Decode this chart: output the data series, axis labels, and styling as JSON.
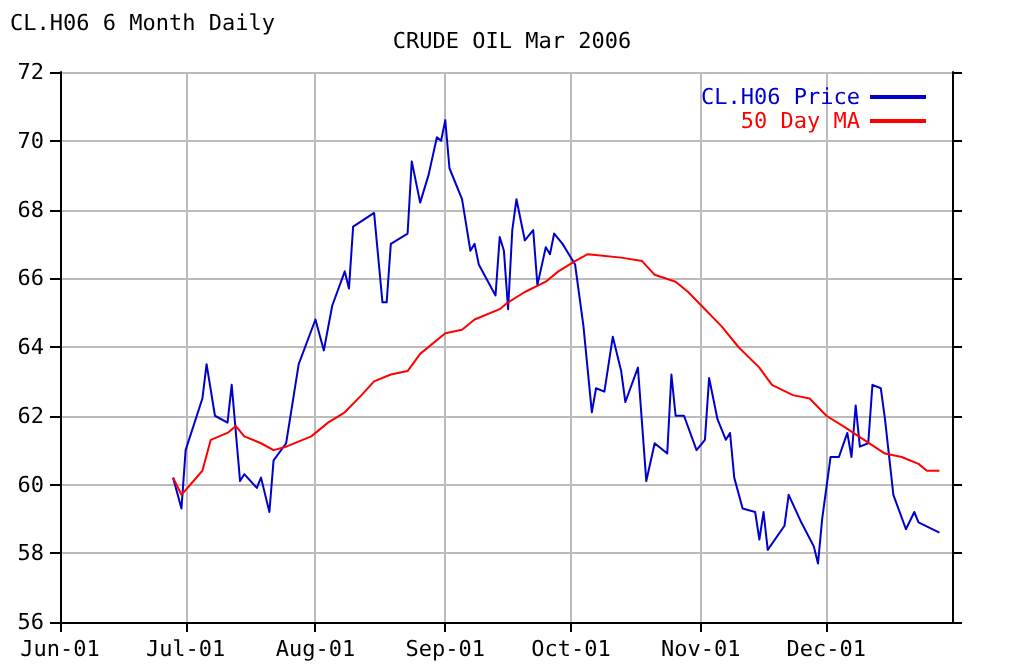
{
  "chart_data": {
    "type": "line",
    "title": "CRUDE OIL Mar 2006",
    "subtitle": "CL.H06 6 Month Daily",
    "xlim": [
      "--06-01",
      "--12-31"
    ],
    "xticks": [
      {
        "value": "--06-01",
        "label": "Jun-01"
      },
      {
        "value": "--07-01",
        "label": "Jul-01"
      },
      {
        "value": "--08-01",
        "label": "Aug-01"
      },
      {
        "value": "--09-01",
        "label": "Sep-01"
      },
      {
        "value": "--10-01",
        "label": "Oct-01"
      },
      {
        "value": "--11-01",
        "label": "Nov-01"
      },
      {
        "value": "--12-01",
        "label": "Dec-01"
      }
    ],
    "ylim": [
      56,
      72
    ],
    "yticks": [
      56,
      58,
      60,
      62,
      64,
      66,
      68,
      70,
      72
    ],
    "grid": true,
    "legend": "top right",
    "marker": "none",
    "line_style": "solid",
    "series": [
      {
        "name": "CL.H06 Price",
        "color": "#0000cc",
        "x": [
          "--06-28",
          "--06-30",
          "--07-01",
          "--07-05",
          "--07-06",
          "--07-08",
          "--07-11",
          "--07-12",
          "--07-14",
          "--07-15",
          "--07-18",
          "--07-19",
          "--07-21",
          "--07-22",
          "--07-25",
          "--07-28",
          "--08-01",
          "--08-03",
          "--08-05",
          "--08-08",
          "--08-09",
          "--08-10",
          "--08-15",
          "--08-17",
          "--08-18",
          "--08-19",
          "--08-23",
          "--08-24",
          "--08-26",
          "--08-28",
          "--08-30",
          "--08-31",
          "--09-01",
          "--09-02",
          "--09-05",
          "--09-07",
          "--09-08",
          "--09-09",
          "--09-13",
          "--09-14",
          "--09-15",
          "--09-16",
          "--09-17",
          "--09-18",
          "--09-20",
          "--09-22",
          "--09-23",
          "--09-25",
          "--09-26",
          "--09-27",
          "--09-29",
          "--10-02",
          "--10-04",
          "--10-06",
          "--10-07",
          "--10-09",
          "--10-11",
          "--10-13",
          "--10-14",
          "--10-17",
          "--10-19",
          "--10-21",
          "--10-24",
          "--10-25",
          "--10-26",
          "--10-28",
          "--10-31",
          "--11-02",
          "--11-03",
          "--11-05",
          "--11-07",
          "--11-08",
          "--11-09",
          "--11-11",
          "--11-14",
          "--11-15",
          "--11-16",
          "--11-17",
          "--11-21",
          "--11-22",
          "--11-25",
          "--11-28",
          "--11-29",
          "--11-30",
          "--12-02",
          "--12-04",
          "--12-06",
          "--12-07",
          "--12-08",
          "--12-09",
          "--12-11",
          "--12-12",
          "--12-14",
          "--12-15",
          "--12-17",
          "--12-20",
          "--12-22",
          "--12-23",
          "--12-28"
        ],
        "values": [
          60.2,
          59.3,
          61.0,
          62.5,
          63.5,
          62.0,
          61.8,
          62.9,
          60.1,
          60.3,
          59.9,
          60.2,
          59.2,
          60.7,
          61.2,
          63.5,
          64.8,
          63.9,
          65.2,
          66.2,
          65.7,
          67.5,
          67.9,
          65.3,
          65.3,
          67.0,
          67.3,
          69.4,
          68.2,
          69.0,
          70.1,
          70.0,
          70.6,
          69.2,
          68.3,
          66.8,
          67.0,
          66.4,
          65.5,
          67.2,
          66.8,
          65.1,
          67.4,
          68.3,
          67.1,
          67.4,
          65.8,
          66.9,
          66.7,
          67.3,
          67.0,
          66.4,
          64.6,
          62.1,
          62.8,
          62.7,
          64.3,
          63.3,
          62.4,
          63.4,
          60.1,
          61.2,
          60.9,
          63.2,
          62.0,
          62.0,
          61.0,
          61.3,
          63.1,
          61.9,
          61.3,
          61.5,
          60.2,
          59.3,
          59.2,
          58.4,
          59.2,
          58.1,
          58.8,
          59.7,
          58.9,
          58.2,
          57.7,
          59.0,
          60.8,
          60.8,
          61.5,
          60.8,
          62.3,
          61.1,
          61.2,
          62.9,
          62.8,
          61.9,
          59.7,
          58.7,
          59.2,
          58.9,
          58.6
        ]
      },
      {
        "name": "50 Day MA",
        "color": "#ff0000",
        "x": [
          "--06-28",
          "--06-30",
          "--07-05",
          "--07-07",
          "--07-09",
          "--07-11",
          "--07-13",
          "--07-15",
          "--07-19",
          "--07-22",
          "--07-25",
          "--07-31",
          "--08-04",
          "--08-08",
          "--08-12",
          "--08-15",
          "--08-19",
          "--08-23",
          "--08-26",
          "--09-01",
          "--09-05",
          "--09-08",
          "--09-14",
          "--09-16",
          "--09-20",
          "--09-25",
          "--09-28",
          "--10-02",
          "--10-05",
          "--10-13",
          "--10-18",
          "--10-21",
          "--10-26",
          "--10-29",
          "--11-02",
          "--11-06",
          "--11-10",
          "--11-15",
          "--11-18",
          "--11-23",
          "--11-27",
          "--12-01",
          "--12-05",
          "--12-10",
          "--12-15",
          "--12-19",
          "--12-23",
          "--12-25",
          "--12-28"
        ],
        "values": [
          60.2,
          59.7,
          60.4,
          61.3,
          61.4,
          61.5,
          61.7,
          61.4,
          61.2,
          61.0,
          61.1,
          61.4,
          61.8,
          62.1,
          62.6,
          63.0,
          63.2,
          63.3,
          63.8,
          64.4,
          64.5,
          64.8,
          65.1,
          65.3,
          65.6,
          65.9,
          66.2,
          66.5,
          66.7,
          66.6,
          66.5,
          66.1,
          65.9,
          65.6,
          65.1,
          64.6,
          64.0,
          63.4,
          62.9,
          62.6,
          62.5,
          62.0,
          61.7,
          61.3,
          60.9,
          60.8,
          60.6,
          60.4,
          60.4
        ]
      }
    ]
  }
}
